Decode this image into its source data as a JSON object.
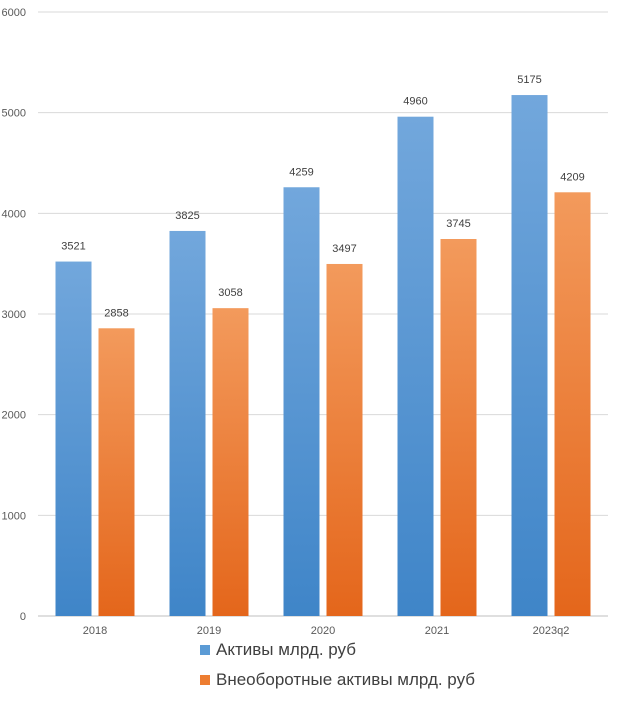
{
  "chart_data": {
    "type": "bar",
    "categories": [
      "2018",
      "2019",
      "2020",
      "2021",
      "2023q2"
    ],
    "series": [
      {
        "name": "Активы млрд. руб",
        "values": [
          3521,
          3825,
          4259,
          4960,
          5175
        ],
        "color": "#5b9bd5"
      },
      {
        "name": "Внеоборотные активы млрд. руб",
        "values": [
          2858,
          3058,
          3497,
          3745,
          4209
        ],
        "color": "#ed7d31"
      }
    ],
    "ylim": [
      0,
      6000
    ],
    "yticks": [
      0,
      1000,
      2000,
      3000,
      4000,
      5000,
      6000
    ],
    "grid": true,
    "legend_position": "bottom",
    "title": "",
    "xlabel": "",
    "ylabel": ""
  }
}
